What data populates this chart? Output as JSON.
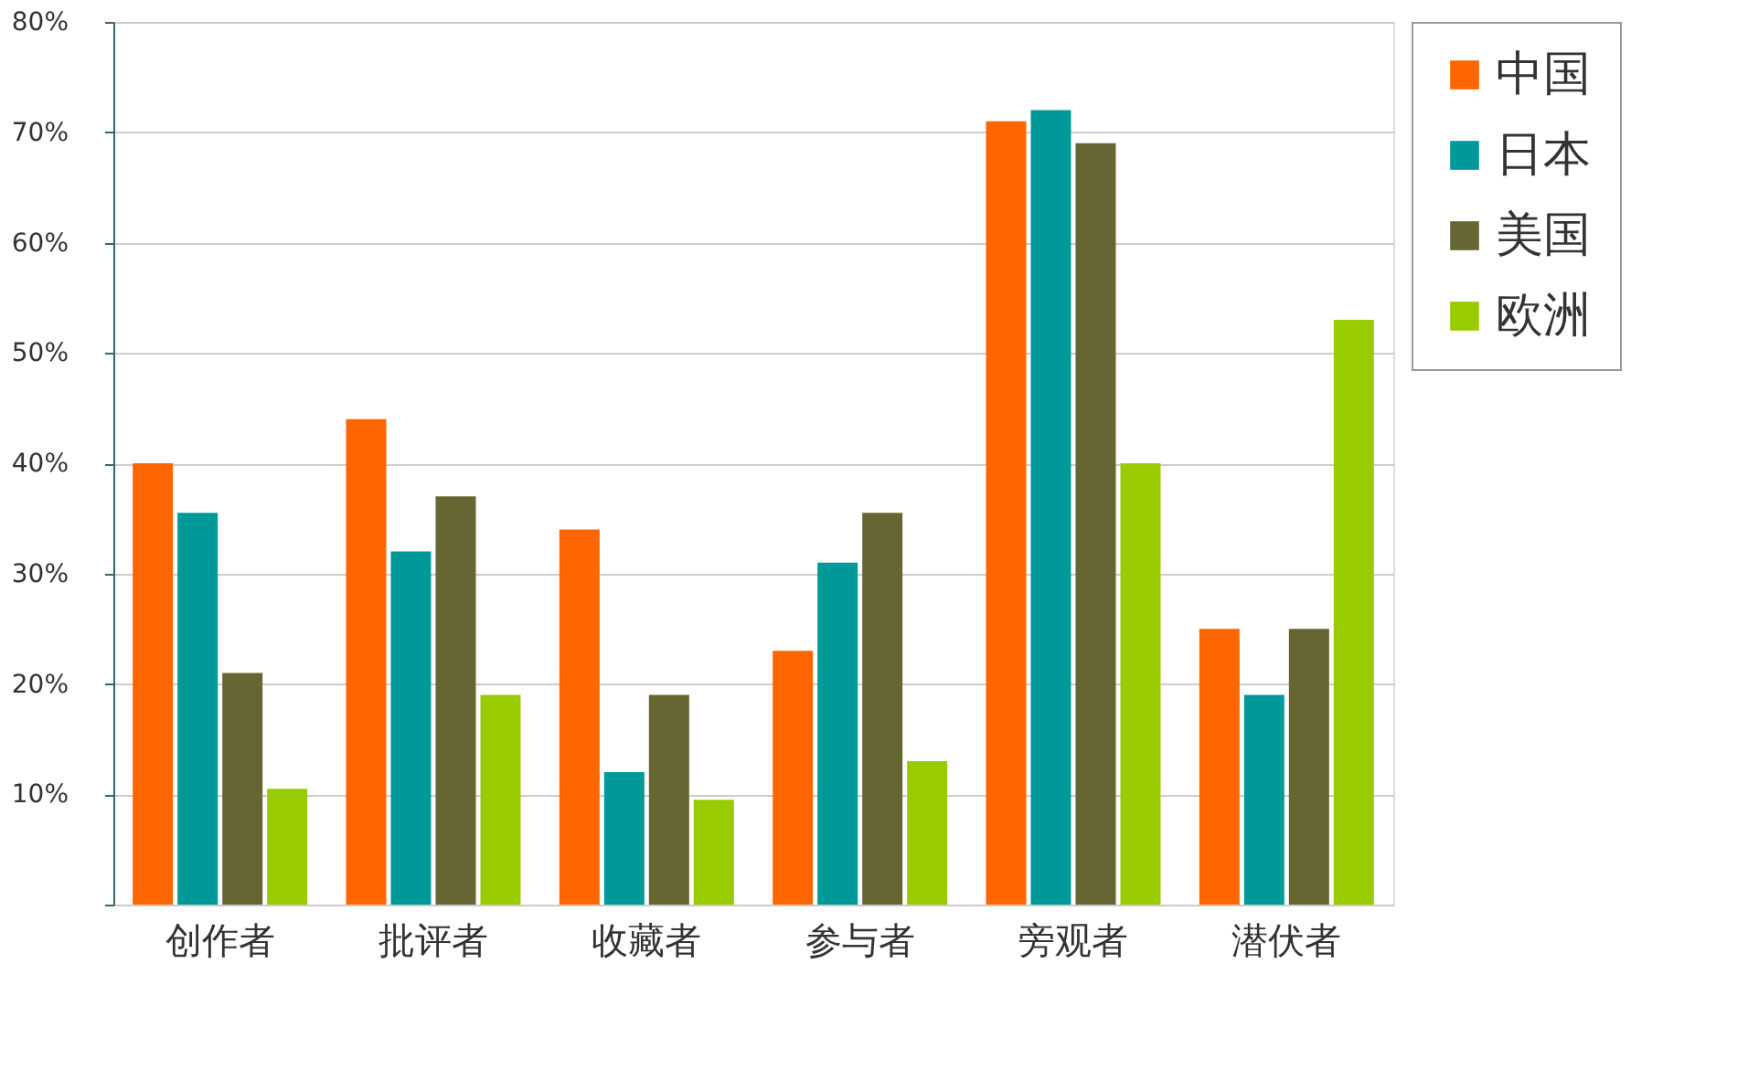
{
  "chart_data": {
    "type": "bar",
    "categories": [
      "创作者",
      "批评者",
      "收藏者",
      "参与者",
      "旁观者",
      "潜伏者"
    ],
    "series": [
      {
        "name": "中国",
        "color": "#ff6600",
        "values": [
          40,
          44,
          34,
          23,
          71,
          25
        ]
      },
      {
        "name": "日本",
        "color": "#009999",
        "values": [
          35.5,
          32,
          12,
          31,
          72,
          19
        ]
      },
      {
        "name": "美国",
        "color": "#666633",
        "values": [
          21,
          37,
          19,
          35.5,
          69,
          25
        ]
      },
      {
        "name": "欧洲",
        "color": "#99cc00",
        "values": [
          10.5,
          19,
          9.5,
          13,
          40,
          53
        ]
      }
    ],
    "ylim": [
      0,
      80
    ],
    "yticks": [
      {
        "value": 0,
        "label": null
      },
      {
        "value": 10,
        "label": "10%"
      },
      {
        "value": 20,
        "label": "20%"
      },
      {
        "value": 30,
        "label": "30%"
      },
      {
        "value": 40,
        "label": "40%"
      },
      {
        "value": 50,
        "label": "50%"
      },
      {
        "value": 60,
        "label": "60%"
      },
      {
        "value": 70,
        "label": "70%"
      },
      {
        "value": 80,
        "label": "80%"
      }
    ],
    "grid": "y",
    "legend": "right"
  }
}
